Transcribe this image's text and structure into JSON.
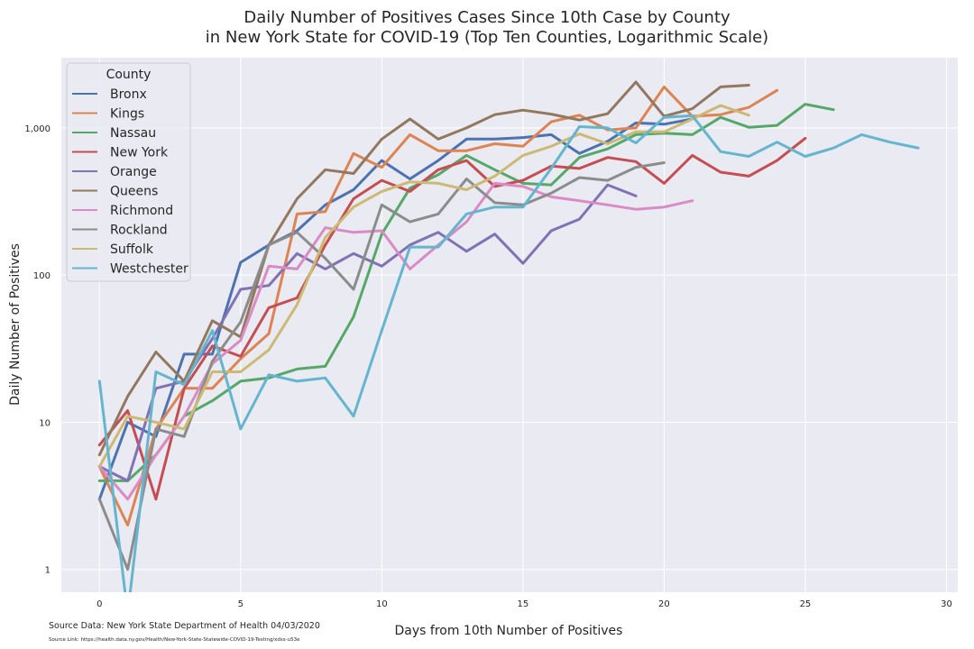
{
  "chart_data": {
    "type": "line",
    "title": "Daily Number of Positives Cases Since 10th Case by County",
    "subtitle": "in New York State for COVID-19 (Top Ten Counties, Logarithmic Scale)",
    "xlabel": "Days from 10th Number of Positives",
    "ylabel": "Daily Number of Positives",
    "xlim": [
      -1.35,
      30.4
    ],
    "ylim": [
      0.7,
      3000
    ],
    "yscale": "log",
    "xticks": [
      0,
      5,
      10,
      15,
      20,
      25,
      30
    ],
    "yticks": [
      1,
      10,
      100,
      1000
    ],
    "ytick_labels": [
      "1",
      "10",
      "100",
      "1,000"
    ],
    "grid": true,
    "legend_title": "County",
    "legend_position": "top-left",
    "series": [
      {
        "name": "Bronx",
        "color": "#4c72b0",
        "values": [
          3,
          10,
          8,
          29,
          29,
          122,
          160,
          200,
          300,
          380,
          600,
          450,
          600,
          840,
          840,
          860,
          900,
          670,
          810,
          1080,
          1060,
          1150
        ]
      },
      {
        "name": "Kings",
        "color": "#dd8452",
        "values": [
          5,
          2,
          9,
          17,
          17,
          27,
          40,
          260,
          270,
          670,
          540,
          900,
          700,
          700,
          780,
          750,
          1100,
          1220,
          970,
          1000,
          1900,
          1200,
          1230,
          1380,
          1800
        ]
      },
      {
        "name": "Nassau",
        "color": "#55a868",
        "values": [
          4,
          4,
          6,
          11,
          14,
          19,
          20,
          23,
          24,
          52,
          190,
          390,
          480,
          650,
          520,
          420,
          410,
          630,
          720,
          900,
          920,
          900,
          1180,
          1010,
          1040,
          1450,
          1330
        ]
      },
      {
        "name": "New York",
        "color": "#c44e52",
        "values": [
          7,
          12,
          3,
          17,
          33,
          28,
          60,
          70,
          160,
          330,
          440,
          370,
          520,
          600,
          400,
          440,
          550,
          530,
          630,
          590,
          420,
          650,
          500,
          470,
          600,
          850
        ]
      },
      {
        "name": "Orange",
        "color": "#8172b3",
        "values": [
          5,
          4,
          17,
          19,
          37,
          80,
          85,
          140,
          110,
          140,
          115,
          160,
          195,
          145,
          190,
          120,
          200,
          240,
          410,
          345
        ]
      },
      {
        "name": "Queens",
        "color": "#937860",
        "values": [
          6,
          15,
          30,
          19,
          49,
          38,
          160,
          330,
          520,
          490,
          840,
          1150,
          840,
          1000,
          1230,
          1320,
          1240,
          1130,
          1250,
          2050,
          1200,
          1350,
          1900,
          1950
        ]
      },
      {
        "name": "Richmond",
        "color": "#da8bc3",
        "values": [
          5,
          3,
          6,
          11,
          25,
          36,
          115,
          110,
          210,
          195,
          200,
          110,
          160,
          230,
          420,
          400,
          340,
          320,
          300,
          280,
          290,
          320
        ]
      },
      {
        "name": "Rockland",
        "color": "#8c8c8c",
        "values": [
          3,
          1,
          9,
          8,
          26,
          48,
          160,
          195,
          130,
          80,
          300,
          230,
          260,
          450,
          310,
          300,
          360,
          460,
          440,
          540,
          580
        ]
      },
      {
        "name": "Suffolk",
        "color": "#ccb974",
        "values": [
          5,
          11,
          10,
          9,
          22,
          22,
          31,
          63,
          180,
          290,
          370,
          430,
          420,
          380,
          470,
          650,
          750,
          910,
          780,
          940,
          940,
          1150,
          1420,
          1220
        ]
      },
      {
        "name": "Westchester",
        "color": "#64b5cd",
        "values": [
          19,
          0.5,
          22,
          18,
          42,
          9,
          21,
          19,
          20,
          11,
          42,
          155,
          155,
          260,
          290,
          290,
          530,
          1020,
          1000,
          790,
          1180,
          1210,
          690,
          640,
          800,
          640,
          730,
          900,
          800,
          730
        ]
      }
    ]
  },
  "source": {
    "data": "Source Data: New York State Department of Health 04/03/2020",
    "link": "Source Link: https://health.data.ny.gov/Health/New-York-State-Statewide-COVID-19-Testing/xdss-u53e"
  }
}
